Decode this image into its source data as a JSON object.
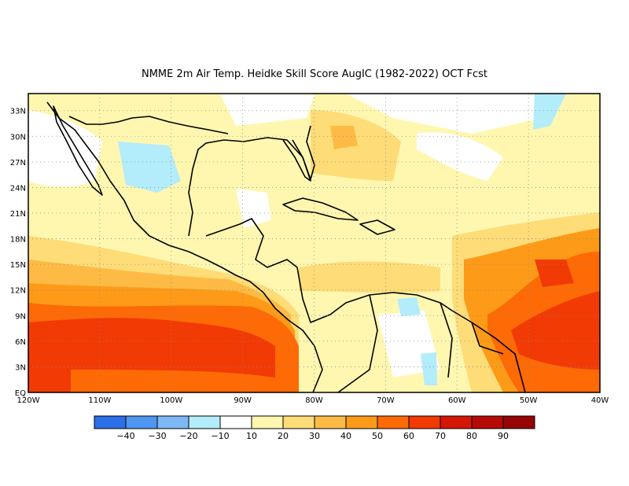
{
  "title": "NMME  2m Air Temp. Heidke Skill Score AugIC (1982-2022) OCT Fcst",
  "map": {
    "lon_range": [
      -120,
      -40
    ],
    "lat_range": [
      0,
      35
    ],
    "lat_ticks": [
      {
        "value": 33,
        "label": "33N"
      },
      {
        "value": 30,
        "label": "30N"
      },
      {
        "value": 27,
        "label": "27N"
      },
      {
        "value": 24,
        "label": "24N"
      },
      {
        "value": 21,
        "label": "21N"
      },
      {
        "value": 18,
        "label": "18N"
      },
      {
        "value": 15,
        "label": "15N"
      },
      {
        "value": 12,
        "label": "12N"
      },
      {
        "value": 9,
        "label": "9N"
      },
      {
        "value": 6,
        "label": "6N"
      },
      {
        "value": 3,
        "label": "3N"
      },
      {
        "value": 0,
        "label": "EQ"
      }
    ],
    "lon_ticks": [
      {
        "value": -120,
        "label": "120W"
      },
      {
        "value": -110,
        "label": "110W"
      },
      {
        "value": -100,
        "label": "100W"
      },
      {
        "value": -90,
        "label": "90W"
      },
      {
        "value": -80,
        "label": "80W"
      },
      {
        "value": -70,
        "label": "70W"
      },
      {
        "value": -60,
        "label": "60W"
      },
      {
        "value": -50,
        "label": "50W"
      },
      {
        "value": -40,
        "label": "40W"
      }
    ],
    "grid": "dotted"
  },
  "colorbar": {
    "colors": [
      "#2c6fe8",
      "#4f96f0",
      "#7db8f5",
      "#b3ecfa",
      "#ffffff",
      "#fff7b0",
      "#fedc78",
      "#fdbb45",
      "#fd9a18",
      "#fd6a06",
      "#f23a05",
      "#d41705",
      "#b80a05",
      "#960404"
    ],
    "labels": [
      "-40",
      "-30",
      "-20",
      "-10",
      "10",
      "20",
      "30",
      "40",
      "50",
      "60",
      "70",
      "80",
      "90"
    ]
  },
  "field_regions": [
    {
      "lon": [
        -120,
        -90
      ],
      "lat": [
        0,
        10
      ],
      "value": 65
    },
    {
      "lon": [
        -90,
        -80
      ],
      "lat": [
        0,
        12
      ],
      "value": 60
    },
    {
      "lon": [
        -55,
        -40
      ],
      "lat": [
        0,
        18
      ],
      "value": 65
    },
    {
      "lon": [
        -75,
        -55
      ],
      "lat": [
        10,
        20
      ],
      "value": 35
    },
    {
      "lon": [
        -95,
        -75
      ],
      "lat": [
        22,
        32
      ],
      "value": 25
    },
    {
      "lon": [
        -110,
        -100
      ],
      "lat": [
        22,
        28
      ],
      "value": -15
    }
  ]
}
